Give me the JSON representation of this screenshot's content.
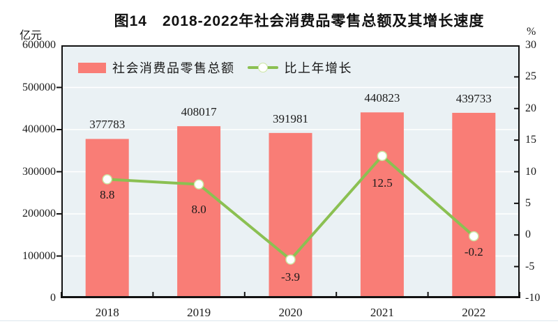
{
  "header": {
    "title": "图14　2018-2022年社会消费品零售总额及其增长速度",
    "left_unit": "亿元",
    "right_unit": "%"
  },
  "legend": {
    "items": [
      {
        "label": "社会消费品零售总额",
        "marker": "bar-swatch",
        "color": "#F97D76"
      },
      {
        "label": "比上年增长",
        "marker": "line-with-circle-marker",
        "color": "#8BC052"
      }
    ]
  },
  "chart_data": {
    "type": "bar+line",
    "title": "图14 2018-2022年社会消费品零售总额及其增长速度",
    "categories": [
      "2018",
      "2019",
      "2020",
      "2021",
      "2022"
    ],
    "series": [
      {
        "name": "社会消费品零售总额",
        "type": "bar",
        "axis": "left",
        "unit": "亿元",
        "values": [
          377783,
          408017,
          391981,
          440823,
          439733
        ],
        "labels": [
          "377783",
          "408017",
          "391981",
          "440823",
          "439733"
        ],
        "color": "#F97D76"
      },
      {
        "name": "比上年增长",
        "type": "line",
        "axis": "right",
        "unit": "%",
        "values": [
          8.8,
          8.0,
          -3.9,
          12.5,
          -0.2
        ],
        "labels": [
          "8.8",
          "8.0",
          "-3.9",
          "12.5",
          "-0.2"
        ],
        "color": "#8BC052",
        "marker": {
          "shape": "circle",
          "fill": "#FFFFFF",
          "outline": "#CBE6A2"
        }
      }
    ],
    "left_axis": {
      "unit": "亿元",
      "min": 0,
      "max": 600000,
      "tick_step": 100000,
      "ticks": [
        0,
        100000,
        200000,
        300000,
        400000,
        500000,
        600000
      ],
      "tick_labels": [
        "0",
        "100000",
        "200000",
        "300000",
        "400000",
        "500000",
        "600000"
      ]
    },
    "right_axis": {
      "unit": "%",
      "min": -10,
      "max": 30,
      "tick_step": 5,
      "ticks": [
        -10,
        -5,
        0,
        5,
        10,
        15,
        20,
        25,
        30
      ],
      "tick_labels": [
        "-10",
        "-5",
        "0",
        "5",
        "10",
        "15",
        "20",
        "25",
        "30"
      ]
    },
    "grid": {
      "horizontal": true,
      "color": "#FFFFFF"
    },
    "plot_background": "#EAF1F4",
    "frame_color": "#111111",
    "legend_position": "inside-top-left"
  }
}
